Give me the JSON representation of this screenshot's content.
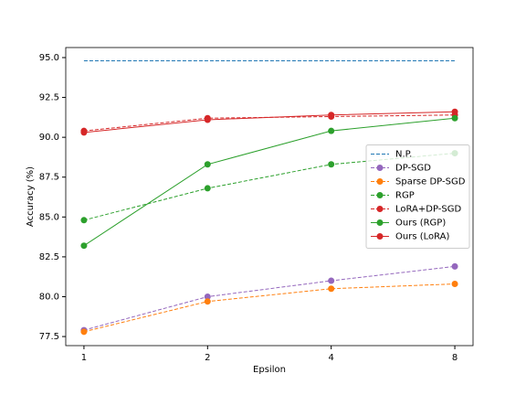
{
  "chart_data": {
    "type": "line",
    "x": [
      1,
      2,
      4,
      8
    ],
    "xlabel": "Epsilon",
    "ylabel": "Accuracy (%)",
    "xscale": "log",
    "xlim": [
      0.903,
      8.86
    ],
    "xticks": [
      1,
      2,
      4,
      8
    ],
    "ylim": [
      76.93,
      95.63
    ],
    "yticks": [
      {
        "value": 77.5,
        "label": "77.5"
      },
      {
        "value": 80,
        "label": "80.0"
      },
      {
        "value": 82.5,
        "label": "82.5"
      },
      {
        "value": 85,
        "label": "85.0"
      },
      {
        "value": 87.5,
        "label": "87.5"
      },
      {
        "value": 90,
        "label": "90.0"
      },
      {
        "value": 92.5,
        "label": "92.5"
      },
      {
        "value": 95,
        "label": "95.0"
      }
    ],
    "legend": "center right",
    "series": [
      {
        "name": "N.P.",
        "color": "#1f77b4",
        "dashed": true,
        "marker": false,
        "values": [
          94.8,
          94.8,
          94.8,
          94.8
        ]
      },
      {
        "name": "DP-SGD",
        "color": "#9467bd",
        "dashed": true,
        "marker": true,
        "values": [
          77.9,
          80.0,
          81.0,
          81.9
        ]
      },
      {
        "name": "Sparse DP-SGD",
        "color": "#ff7f0e",
        "dashed": true,
        "marker": true,
        "values": [
          77.8,
          79.7,
          80.5,
          80.8
        ]
      },
      {
        "name": "RGP",
        "color": "#2ca02c",
        "dashed": true,
        "marker": true,
        "values": [
          84.8,
          86.8,
          88.3,
          89.0
        ]
      },
      {
        "name": "LoRA+DP-SGD",
        "color": "#d62728",
        "dashed": true,
        "marker": true,
        "values": [
          90.4,
          91.2,
          91.3,
          91.4
        ]
      },
      {
        "name": "Ours (RGP)",
        "color": "#2ca02c",
        "dashed": false,
        "marker": true,
        "values": [
          83.2,
          88.3,
          90.4,
          91.2
        ]
      },
      {
        "name": "Ours (LoRA)",
        "color": "#d62728",
        "dashed": false,
        "marker": true,
        "values": [
          90.3,
          91.1,
          91.4,
          91.6
        ]
      }
    ]
  }
}
